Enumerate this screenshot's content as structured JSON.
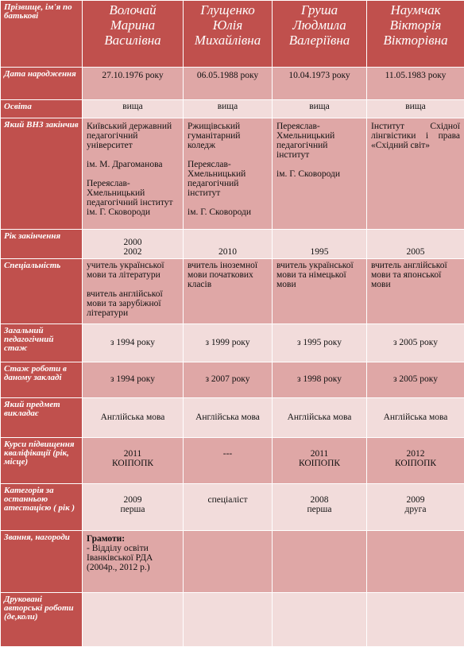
{
  "header": {
    "label": "Прізвище, ім'я по батькові",
    "names": [
      [
        "Волочай",
        "Марина",
        "Василівна"
      ],
      [
        "Глущенко",
        "Юлія",
        "Михайлівна"
      ],
      [
        "Груша",
        "Людмила",
        "Валеріївна"
      ],
      [
        "Наумчак",
        "Вікторія",
        "Вікторівна"
      ]
    ]
  },
  "rows": [
    {
      "label": "Дата народження",
      "cells": [
        [
          "27.10.1976 року"
        ],
        [
          "06.05.1988 року"
        ],
        [
          "10.04.1973 року"
        ],
        [
          "11.05.1983 року"
        ]
      ]
    },
    {
      "label": "Освіта",
      "cells": [
        [
          "вища"
        ],
        [
          "вища"
        ],
        [
          "вища"
        ],
        [
          "вища"
        ]
      ]
    },
    {
      "label": "Який ВНЗ закінчив",
      "cells": [
        [
          "Київський державний педагогічний університет",
          "ім. М. Драгоманова",
          "Переяслав-Хмельницький педагогічний інститут ім. Г. Сковороди"
        ],
        [
          "Ржищівський гуманітарний коледж",
          "Переяслав-Хмельницький педагогічний інститут",
          "ім. Г. Сковороди"
        ],
        [
          "Переяслав-Хмельницький педагогічний інститут",
          "ім. Г. Сковороди"
        ],
        [
          "Інститут Східної лінгвістики і права «Східний світ»"
        ]
      ]
    },
    {
      "label": "Рік закінчення",
      "cells": [
        [
          "2000",
          "2002"
        ],
        [
          "2010"
        ],
        [
          "1995"
        ],
        [
          "2005"
        ]
      ]
    },
    {
      "label": "Спеціальність",
      "cells": [
        [
          "учитель української мови та літератури",
          "вчитель англійської мови та зарубіжної літератури"
        ],
        [
          "вчитель іноземної мови початкових класів"
        ],
        [
          "вчитель української мови та німецької мови"
        ],
        [
          "вчитель англійської мови та японської мови"
        ]
      ]
    },
    {
      "label": "Загальний педагогічний стаж",
      "cells": [
        [
          "з 1994 року"
        ],
        [
          "з 1999 року"
        ],
        [
          "з 1995 року"
        ],
        [
          "з 2005 року"
        ]
      ]
    },
    {
      "label": "Стаж роботи в даному закладі",
      "cells": [
        [
          "з 1994 року"
        ],
        [
          "з 2007 року"
        ],
        [
          "з 1998 року"
        ],
        [
          "з 2005 року"
        ]
      ]
    },
    {
      "label": "Який предмет викладає",
      "cells": [
        [
          "Англійська мова"
        ],
        [
          "Англійська мова"
        ],
        [
          "Англійська мова"
        ],
        [
          "Англійська мова"
        ]
      ]
    },
    {
      "label": "Курси підвищення кваліфікації (рік, місце)",
      "cells": [
        [
          "2011",
          "КОІПОПК"
        ],
        [
          "---"
        ],
        [
          "2011",
          "КОІПОПК"
        ],
        [
          "2012",
          "КОІПОПК"
        ]
      ]
    },
    {
      "label": "Категорія за останньою атестацією ( рік )",
      "cells": [
        [
          "2009",
          "перша"
        ],
        [
          "спеціаліст"
        ],
        [
          "2008",
          "перша"
        ],
        [
          "2009",
          "друга"
        ]
      ]
    },
    {
      "label": "Звання, нагороди",
      "cells": [
        [
          "Грамоти:",
          "- Відділу освіти Іванківської РДА (2004р., 2012 р.)"
        ],
        [],
        [],
        []
      ]
    },
    {
      "label": "Друковані авторські роботи (де,коли)",
      "cells": [
        [],
        [],
        [],
        []
      ]
    }
  ]
}
